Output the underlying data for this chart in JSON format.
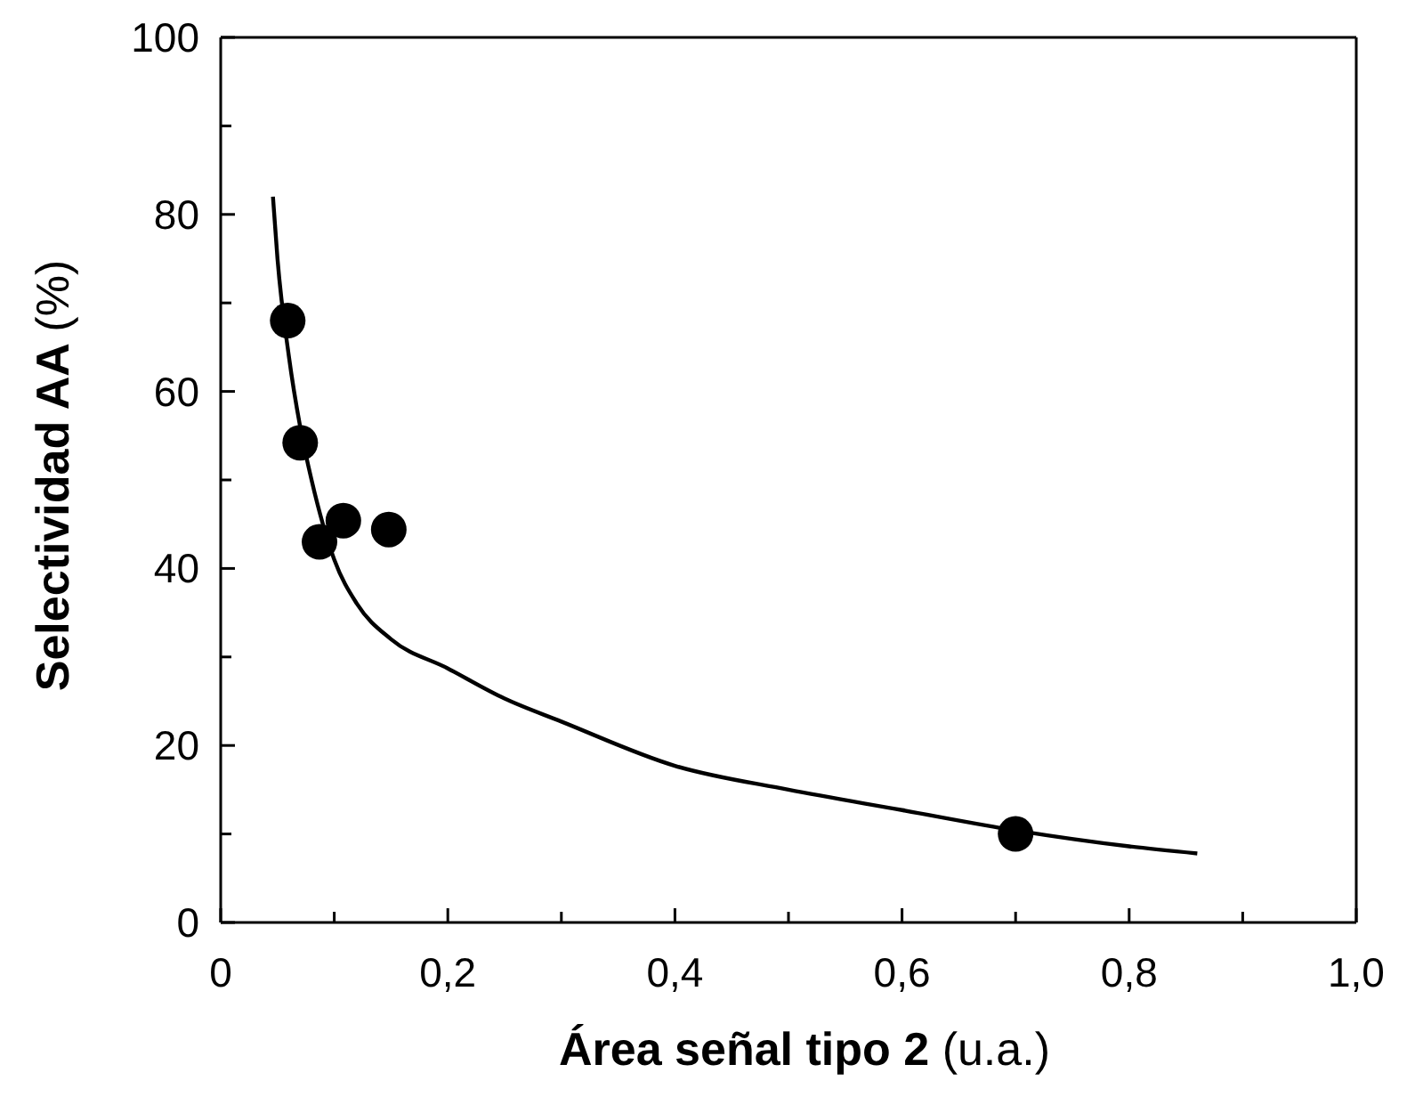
{
  "chart_data": {
    "type": "scatter",
    "xlabel": "Área señal tipo 2 (u.a.)",
    "ylabel": "Selectividad AA (%)",
    "series": [
      {
        "color": "#000000",
        "marker": "circle",
        "x": [
          0.059,
          0.07,
          0.087,
          0.108,
          0.148,
          0.7
        ],
        "values": [
          68,
          54.2,
          43,
          45.4,
          44.4,
          10
        ]
      },
      {
        "type": "line",
        "color": "#000000",
        "marker": "none",
        "x": [
          0.046,
          0.05,
          0.06,
          0.07,
          0.08,
          0.1,
          0.12,
          0.15,
          0.2,
          0.25,
          0.3,
          0.4,
          0.5,
          0.6,
          0.7,
          0.8,
          0.86
        ],
        "values": [
          82,
          75,
          64,
          56,
          50,
          41,
          36,
          32,
          28.7,
          25.3,
          22.7,
          17.7,
          15,
          12.7,
          10.4,
          8.6,
          7.8
        ]
      }
    ],
    "xlim": [
      0,
      1
    ],
    "ylim": [
      0,
      100
    ],
    "xticks": [
      0,
      {
        "value": 0.1,
        "label": null
      },
      {
        "value": 0.2,
        "label": "0,2"
      },
      {
        "value": 0.3,
        "label": null
      },
      {
        "value": 0.4,
        "label": "0,4"
      },
      {
        "value": 0.5,
        "label": null
      },
      {
        "value": 0.6,
        "label": "0,6"
      },
      {
        "value": 0.7,
        "label": null
      },
      {
        "value": 0.8,
        "label": "0,8"
      },
      {
        "value": 0.9,
        "label": null
      },
      {
        "value": 1,
        "label": "1,0"
      }
    ],
    "yticks": [
      0,
      {
        "value": 10,
        "label": null
      },
      20,
      {
        "value": 30,
        "label": null
      },
      40,
      {
        "value": 50,
        "label": null
      },
      60,
      {
        "value": 70,
        "label": null
      },
      80,
      {
        "value": 90,
        "label": null
      },
      100
    ],
    "grid": false,
    "legend": false
  }
}
